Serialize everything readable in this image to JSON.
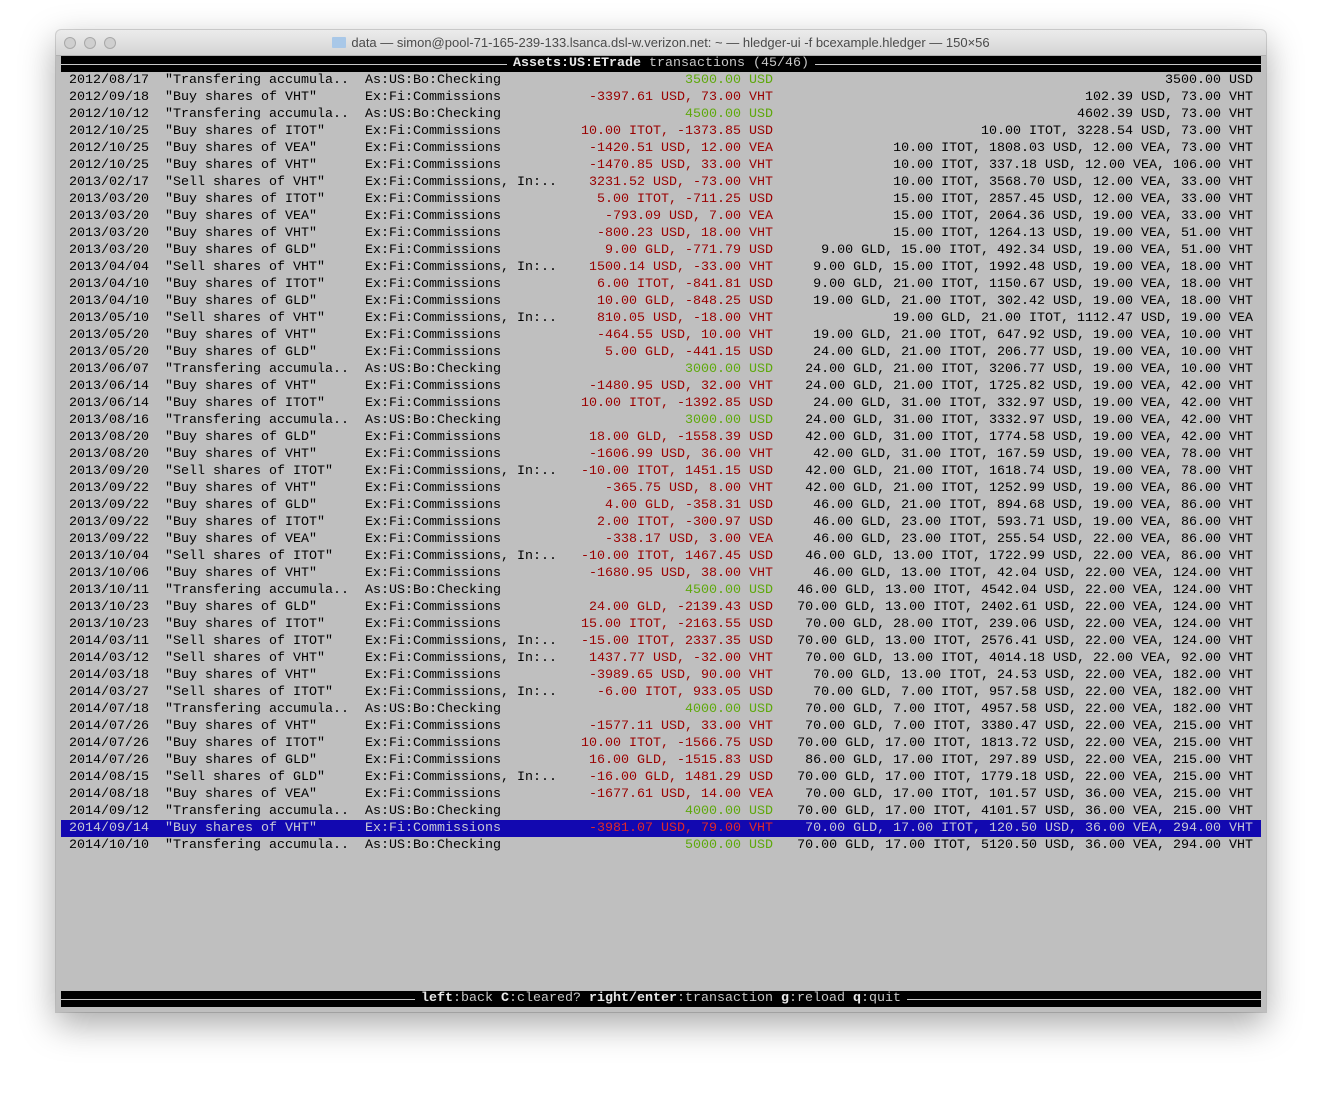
{
  "window": {
    "title": "data — simon@pool-71-165-239-133.lsanca.dsl-w.verizon.net: ~ — hledger-ui -f bcexample.hledger — 150×56",
    "folder_icon": "folder-icon"
  },
  "header": {
    "account": "Assets:US:ETrade",
    "label": "transactions (45/46)"
  },
  "colors": {
    "negative": "#990000",
    "positive": "#5ea80c",
    "selection": "#1208b0",
    "background": "#bfbfbf"
  },
  "selected_index": 44,
  "rows": [
    [
      "2012/08/17",
      "\"Transfering accumula..",
      "As:US:Bo:Checking",
      "3500.00 USD",
      "3500.00 USD"
    ],
    [
      "2012/09/18",
      "\"Buy shares of VHT\"",
      "Ex:Fi:Commissions",
      "-3397.61 USD, 73.00 VHT",
      "102.39 USD, 73.00 VHT"
    ],
    [
      "2012/10/12",
      "\"Transfering accumula..",
      "As:US:Bo:Checking",
      "4500.00 USD",
      "4602.39 USD, 73.00 VHT"
    ],
    [
      "2012/10/25",
      "\"Buy shares of ITOT\"",
      "Ex:Fi:Commissions",
      "10.00 ITOT, -1373.85 USD",
      "10.00 ITOT, 3228.54 USD, 73.00 VHT"
    ],
    [
      "2012/10/25",
      "\"Buy shares of VEA\"",
      "Ex:Fi:Commissions",
      "-1420.51 USD, 12.00 VEA",
      "10.00 ITOT, 1808.03 USD, 12.00 VEA, 73.00 VHT"
    ],
    [
      "2012/10/25",
      "\"Buy shares of VHT\"",
      "Ex:Fi:Commissions",
      "-1470.85 USD, 33.00 VHT",
      "10.00 ITOT, 337.18 USD, 12.00 VEA, 106.00 VHT"
    ],
    [
      "2013/02/17",
      "\"Sell shares of VHT\"",
      "Ex:Fi:Commissions, In:..",
      "3231.52 USD, -73.00 VHT",
      "10.00 ITOT, 3568.70 USD, 12.00 VEA, 33.00 VHT"
    ],
    [
      "2013/03/20",
      "\"Buy shares of ITOT\"",
      "Ex:Fi:Commissions",
      "5.00 ITOT, -711.25 USD",
      "15.00 ITOT, 2857.45 USD, 12.00 VEA, 33.00 VHT"
    ],
    [
      "2013/03/20",
      "\"Buy shares of VEA\"",
      "Ex:Fi:Commissions",
      "-793.09 USD, 7.00 VEA",
      "15.00 ITOT, 2064.36 USD, 19.00 VEA, 33.00 VHT"
    ],
    [
      "2013/03/20",
      "\"Buy shares of VHT\"",
      "Ex:Fi:Commissions",
      "-800.23 USD, 18.00 VHT",
      "15.00 ITOT, 1264.13 USD, 19.00 VEA, 51.00 VHT"
    ],
    [
      "2013/03/20",
      "\"Buy shares of GLD\"",
      "Ex:Fi:Commissions",
      "9.00 GLD, -771.79 USD",
      "9.00 GLD, 15.00 ITOT, 492.34 USD, 19.00 VEA, 51.00 VHT"
    ],
    [
      "2013/04/04",
      "\"Sell shares of VHT\"",
      "Ex:Fi:Commissions, In:..",
      "1500.14 USD, -33.00 VHT",
      "9.00 GLD, 15.00 ITOT, 1992.48 USD, 19.00 VEA, 18.00 VHT"
    ],
    [
      "2013/04/10",
      "\"Buy shares of ITOT\"",
      "Ex:Fi:Commissions",
      "6.00 ITOT, -841.81 USD",
      "9.00 GLD, 21.00 ITOT, 1150.67 USD, 19.00 VEA, 18.00 VHT"
    ],
    [
      "2013/04/10",
      "\"Buy shares of GLD\"",
      "Ex:Fi:Commissions",
      "10.00 GLD, -848.25 USD",
      "19.00 GLD, 21.00 ITOT, 302.42 USD, 19.00 VEA, 18.00 VHT"
    ],
    [
      "2013/05/10",
      "\"Sell shares of VHT\"",
      "Ex:Fi:Commissions, In:..",
      "810.05 USD, -18.00 VHT",
      "19.00 GLD, 21.00 ITOT, 1112.47 USD, 19.00 VEA"
    ],
    [
      "2013/05/20",
      "\"Buy shares of VHT\"",
      "Ex:Fi:Commissions",
      "-464.55 USD, 10.00 VHT",
      "19.00 GLD, 21.00 ITOT, 647.92 USD, 19.00 VEA, 10.00 VHT"
    ],
    [
      "2013/05/20",
      "\"Buy shares of GLD\"",
      "Ex:Fi:Commissions",
      "5.00 GLD, -441.15 USD",
      "24.00 GLD, 21.00 ITOT, 206.77 USD, 19.00 VEA, 10.00 VHT"
    ],
    [
      "2013/06/07",
      "\"Transfering accumula..",
      "As:US:Bo:Checking",
      "3000.00 USD",
      "24.00 GLD, 21.00 ITOT, 3206.77 USD, 19.00 VEA, 10.00 VHT"
    ],
    [
      "2013/06/14",
      "\"Buy shares of VHT\"",
      "Ex:Fi:Commissions",
      "-1480.95 USD, 32.00 VHT",
      "24.00 GLD, 21.00 ITOT, 1725.82 USD, 19.00 VEA, 42.00 VHT"
    ],
    [
      "2013/06/14",
      "\"Buy shares of ITOT\"",
      "Ex:Fi:Commissions",
      "10.00 ITOT, -1392.85 USD",
      "24.00 GLD, 31.00 ITOT, 332.97 USD, 19.00 VEA, 42.00 VHT"
    ],
    [
      "2013/08/16",
      "\"Transfering accumula..",
      "As:US:Bo:Checking",
      "3000.00 USD",
      "24.00 GLD, 31.00 ITOT, 3332.97 USD, 19.00 VEA, 42.00 VHT"
    ],
    [
      "2013/08/20",
      "\"Buy shares of GLD\"",
      "Ex:Fi:Commissions",
      "18.00 GLD, -1558.39 USD",
      "42.00 GLD, 31.00 ITOT, 1774.58 USD, 19.00 VEA, 42.00 VHT"
    ],
    [
      "2013/08/20",
      "\"Buy shares of VHT\"",
      "Ex:Fi:Commissions",
      "-1606.99 USD, 36.00 VHT",
      "42.00 GLD, 31.00 ITOT, 167.59 USD, 19.00 VEA, 78.00 VHT"
    ],
    [
      "2013/09/20",
      "\"Sell shares of ITOT\"",
      "Ex:Fi:Commissions, In:..",
      "-10.00 ITOT, 1451.15 USD",
      "42.00 GLD, 21.00 ITOT, 1618.74 USD, 19.00 VEA, 78.00 VHT"
    ],
    [
      "2013/09/22",
      "\"Buy shares of VHT\"",
      "Ex:Fi:Commissions",
      "-365.75 USD, 8.00 VHT",
      "42.00 GLD, 21.00 ITOT, 1252.99 USD, 19.00 VEA, 86.00 VHT"
    ],
    [
      "2013/09/22",
      "\"Buy shares of GLD\"",
      "Ex:Fi:Commissions",
      "4.00 GLD, -358.31 USD",
      "46.00 GLD, 21.00 ITOT, 894.68 USD, 19.00 VEA, 86.00 VHT"
    ],
    [
      "2013/09/22",
      "\"Buy shares of ITOT\"",
      "Ex:Fi:Commissions",
      "2.00 ITOT, -300.97 USD",
      "46.00 GLD, 23.00 ITOT, 593.71 USD, 19.00 VEA, 86.00 VHT"
    ],
    [
      "2013/09/22",
      "\"Buy shares of VEA\"",
      "Ex:Fi:Commissions",
      "-338.17 USD, 3.00 VEA",
      "46.00 GLD, 23.00 ITOT, 255.54 USD, 22.00 VEA, 86.00 VHT"
    ],
    [
      "2013/10/04",
      "\"Sell shares of ITOT\"",
      "Ex:Fi:Commissions, In:..",
      "-10.00 ITOT, 1467.45 USD",
      "46.00 GLD, 13.00 ITOT, 1722.99 USD, 22.00 VEA, 86.00 VHT"
    ],
    [
      "2013/10/06",
      "\"Buy shares of VHT\"",
      "Ex:Fi:Commissions",
      "-1680.95 USD, 38.00 VHT",
      "46.00 GLD, 13.00 ITOT, 42.04 USD, 22.00 VEA, 124.00 VHT"
    ],
    [
      "2013/10/11",
      "\"Transfering accumula..",
      "As:US:Bo:Checking",
      "4500.00 USD",
      "46.00 GLD, 13.00 ITOT, 4542.04 USD, 22.00 VEA, 124.00 VHT"
    ],
    [
      "2013/10/23",
      "\"Buy shares of GLD\"",
      "Ex:Fi:Commissions",
      "24.00 GLD, -2139.43 USD",
      "70.00 GLD, 13.00 ITOT, 2402.61 USD, 22.00 VEA, 124.00 VHT"
    ],
    [
      "2013/10/23",
      "\"Buy shares of ITOT\"",
      "Ex:Fi:Commissions",
      "15.00 ITOT, -2163.55 USD",
      "70.00 GLD, 28.00 ITOT, 239.06 USD, 22.00 VEA, 124.00 VHT"
    ],
    [
      "2014/03/11",
      "\"Sell shares of ITOT\"",
      "Ex:Fi:Commissions, In:..",
      "-15.00 ITOT, 2337.35 USD",
      "70.00 GLD, 13.00 ITOT, 2576.41 USD, 22.00 VEA, 124.00 VHT"
    ],
    [
      "2014/03/12",
      "\"Sell shares of VHT\"",
      "Ex:Fi:Commissions, In:..",
      "1437.77 USD, -32.00 VHT",
      "70.00 GLD, 13.00 ITOT, 4014.18 USD, 22.00 VEA, 92.00 VHT"
    ],
    [
      "2014/03/18",
      "\"Buy shares of VHT\"",
      "Ex:Fi:Commissions",
      "-3989.65 USD, 90.00 VHT",
      "70.00 GLD, 13.00 ITOT, 24.53 USD, 22.00 VEA, 182.00 VHT"
    ],
    [
      "2014/03/27",
      "\"Sell shares of ITOT\"",
      "Ex:Fi:Commissions, In:..",
      "-6.00 ITOT, 933.05 USD",
      "70.00 GLD, 7.00 ITOT, 957.58 USD, 22.00 VEA, 182.00 VHT"
    ],
    [
      "2014/07/18",
      "\"Transfering accumula..",
      "As:US:Bo:Checking",
      "4000.00 USD",
      "70.00 GLD, 7.00 ITOT, 4957.58 USD, 22.00 VEA, 182.00 VHT"
    ],
    [
      "2014/07/26",
      "\"Buy shares of VHT\"",
      "Ex:Fi:Commissions",
      "-1577.11 USD, 33.00 VHT",
      "70.00 GLD, 7.00 ITOT, 3380.47 USD, 22.00 VEA, 215.00 VHT"
    ],
    [
      "2014/07/26",
      "\"Buy shares of ITOT\"",
      "Ex:Fi:Commissions",
      "10.00 ITOT, -1566.75 USD",
      "70.00 GLD, 17.00 ITOT, 1813.72 USD, 22.00 VEA, 215.00 VHT"
    ],
    [
      "2014/07/26",
      "\"Buy shares of GLD\"",
      "Ex:Fi:Commissions",
      "16.00 GLD, -1515.83 USD",
      "86.00 GLD, 17.00 ITOT, 297.89 USD, 22.00 VEA, 215.00 VHT"
    ],
    [
      "2014/08/15",
      "\"Sell shares of GLD\"",
      "Ex:Fi:Commissions, In:..",
      "-16.00 GLD, 1481.29 USD",
      "70.00 GLD, 17.00 ITOT, 1779.18 USD, 22.00 VEA, 215.00 VHT"
    ],
    [
      "2014/08/18",
      "\"Buy shares of VEA\"",
      "Ex:Fi:Commissions",
      "-1677.61 USD, 14.00 VEA",
      "70.00 GLD, 17.00 ITOT, 101.57 USD, 36.00 VEA, 215.00 VHT"
    ],
    [
      "2014/09/12",
      "\"Transfering accumula..",
      "As:US:Bo:Checking",
      "4000.00 USD",
      "70.00 GLD, 17.00 ITOT, 4101.57 USD, 36.00 VEA, 215.00 VHT"
    ],
    [
      "2014/09/14",
      "\"Buy shares of VHT\"",
      "Ex:Fi:Commissions",
      "-3981.07 USD, 79.00 VHT",
      "70.00 GLD, 17.00 ITOT, 120.50 USD, 36.00 VEA, 294.00 VHT"
    ],
    [
      "2014/10/10",
      "\"Transfering accumula..",
      "As:US:Bo:Checking",
      "5000.00 USD",
      "70.00 GLD, 17.00 ITOT, 5120.50 USD, 36.00 VEA, 294.00 VHT"
    ]
  ],
  "footer": {
    "keys": [
      {
        "key": "left",
        "action": "back"
      },
      {
        "key": "C",
        "action": "cleared?"
      },
      {
        "key": "right/enter",
        "action": "transaction"
      },
      {
        "key": "g",
        "action": "reload"
      },
      {
        "key": "q",
        "action": "quit"
      }
    ]
  }
}
